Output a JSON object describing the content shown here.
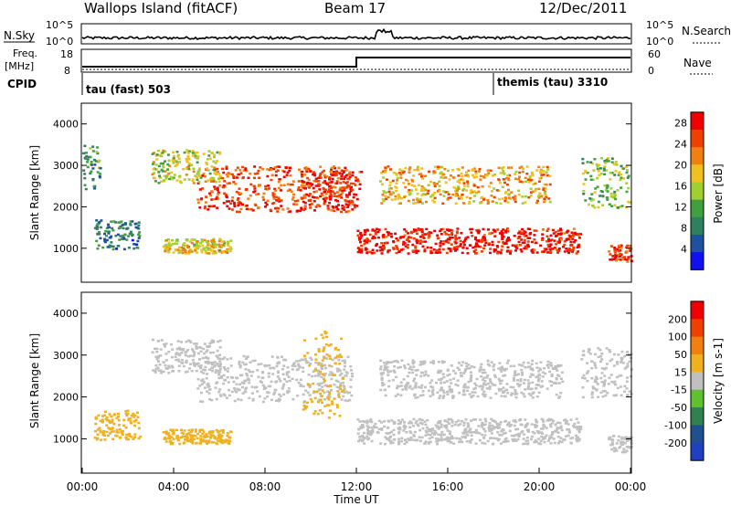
{
  "header": {
    "station": "Wallops Island (fitACF)",
    "beam": "Beam 17",
    "date": "12/Dec/2011"
  },
  "top_panels": {
    "nsky_label": "N.Sky",
    "nsearch_label": "N.Search",
    "nsky_ticks": [
      "10^5",
      "10^0"
    ],
    "nsky_right_ticks": [
      "10^5",
      "10^0"
    ],
    "freq_label_line1": "Freq.",
    "freq_label_line2": "[MHz]",
    "freq_ticks": [
      "18",
      "8"
    ],
    "nave_label": "Nave",
    "nave_ticks": [
      "60",
      "0"
    ],
    "cpid_label": "CPID",
    "cpid_segments": [
      {
        "text": "tau (fast) 503",
        "start_hour": 0,
        "end_hour": 18
      },
      {
        "text": "themis (tau) 3310",
        "start_hour": 18,
        "end_hour": 24
      }
    ]
  },
  "chart_data": [
    {
      "type": "heatmap",
      "name": "Power",
      "ylabel": "Slant Range [km]",
      "xlabel": "Time UT",
      "xlim": [
        0,
        24
      ],
      "ylim": [
        180,
        4500
      ],
      "y_ticks": [
        1000,
        2000,
        3000,
        4000
      ],
      "colorbar": {
        "label": "Power [dB]",
        "ticks": [
          4,
          8,
          12,
          16,
          20,
          24,
          28
        ],
        "range": [
          0,
          30
        ],
        "colors": [
          "#1010f0",
          "#2050a0",
          "#308060",
          "#40a040",
          "#a0d030",
          "#f0c020",
          "#f08010",
          "#f04000",
          "#f00000"
        ]
      },
      "bands": [
        {
          "t0": 9.5,
          "t1": 12.2,
          "r0": 2000,
          "r1": 2900,
          "level": 27
        },
        {
          "t0": 12.0,
          "t1": 21.8,
          "r0": 900,
          "r1": 1500,
          "level": 28
        },
        {
          "t0": 5.0,
          "t1": 11.8,
          "r0": 1900,
          "r1": 3000,
          "level": 25
        },
        {
          "t0": 3.0,
          "t1": 6.0,
          "r0": 2600,
          "r1": 3400,
          "level": 16
        },
        {
          "t0": 3.5,
          "t1": 6.5,
          "r0": 900,
          "r1": 1250,
          "level": 18
        },
        {
          "t0": 0.0,
          "t1": 0.8,
          "r0": 2400,
          "r1": 3500,
          "level": 9
        },
        {
          "t0": 0.5,
          "t1": 2.5,
          "r0": 1000,
          "r1": 1700,
          "level": 8
        },
        {
          "t0": 21.8,
          "t1": 24.0,
          "r0": 2000,
          "r1": 3200,
          "level": 14
        },
        {
          "t0": 23.0,
          "t1": 24.0,
          "r0": 700,
          "r1": 1100,
          "level": 26
        },
        {
          "t0": 13.0,
          "t1": 20.5,
          "r0": 2100,
          "r1": 3000,
          "level": 20
        }
      ]
    },
    {
      "type": "heatmap",
      "name": "Velocity",
      "ylabel": "Slant Range [km]",
      "xlabel": "Time UT",
      "xlim": [
        0,
        24
      ],
      "ylim": [
        180,
        4500
      ],
      "y_ticks": [
        1000,
        2000,
        3000,
        4000
      ],
      "colorbar": {
        "label": "Velocity [m s-1]",
        "ticks": [
          200,
          100,
          50,
          15,
          -15,
          -50,
          -100,
          -200
        ],
        "range": [
          -250,
          250
        ],
        "colors": [
          "#2040c0",
          "#205090",
          "#308050",
          "#60c030",
          "#c0c0c0",
          "#f0b020",
          "#f08010",
          "#f04000",
          "#f00000"
        ]
      },
      "bands": [
        {
          "t0": 5.0,
          "t1": 11.8,
          "r0": 1900,
          "r1": 3000,
          "level": 0
        },
        {
          "t0": 12.0,
          "t1": 21.8,
          "r0": 900,
          "r1": 1500,
          "level": 0
        },
        {
          "t0": 13.0,
          "t1": 21.0,
          "r0": 2000,
          "r1": 2900,
          "level": 0
        },
        {
          "t0": 3.5,
          "t1": 6.5,
          "r0": 900,
          "r1": 1250,
          "level": 40
        },
        {
          "t0": 0.5,
          "t1": 2.5,
          "r0": 1000,
          "r1": 1700,
          "level": 45
        },
        {
          "t0": 9.6,
          "t1": 11.4,
          "r0": 1500,
          "r1": 3600,
          "level": 40
        },
        {
          "t0": 3.0,
          "t1": 6.0,
          "r0": 2600,
          "r1": 3400,
          "level": 0
        },
        {
          "t0": 21.8,
          "t1": 24.0,
          "r0": 2000,
          "r1": 3200,
          "level": 0
        },
        {
          "t0": 23.0,
          "t1": 24.0,
          "r0": 700,
          "r1": 1100,
          "level": 0
        }
      ]
    }
  ],
  "time_axis": {
    "tick_labels": [
      "00:00",
      "04:00",
      "08:00",
      "12:00",
      "16:00",
      "20:00",
      "00:00"
    ],
    "label": "Time UT"
  }
}
